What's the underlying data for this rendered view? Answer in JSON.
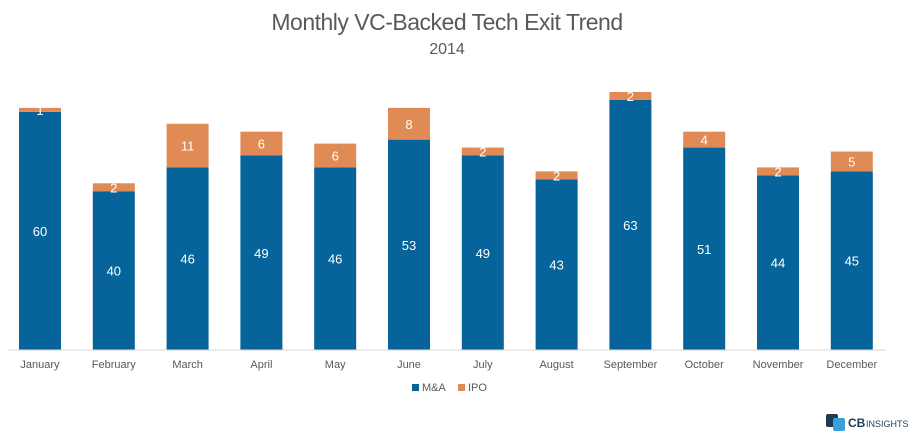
{
  "chart_data": {
    "type": "bar",
    "stacked": true,
    "title": "Monthly VC-Backed Tech Exit Trend",
    "subtitle": "2014",
    "categories": [
      "January",
      "February",
      "March",
      "April",
      "May",
      "June",
      "July",
      "August",
      "September",
      "October",
      "November",
      "December"
    ],
    "series": [
      {
        "name": "M&A",
        "color": "#06649a",
        "values": [
          60,
          40,
          46,
          49,
          46,
          53,
          49,
          43,
          63,
          51,
          44,
          45
        ]
      },
      {
        "name": "IPO",
        "color": "#e08a55",
        "values": [
          1,
          2,
          11,
          6,
          6,
          8,
          2,
          2,
          2,
          4,
          2,
          5
        ]
      }
    ],
    "ylim": [
      0,
      65
    ],
    "grid": false,
    "legend": "bottom-center"
  },
  "branding": {
    "logo_text": "CB",
    "logo_suffix": "INSIGHTS"
  }
}
